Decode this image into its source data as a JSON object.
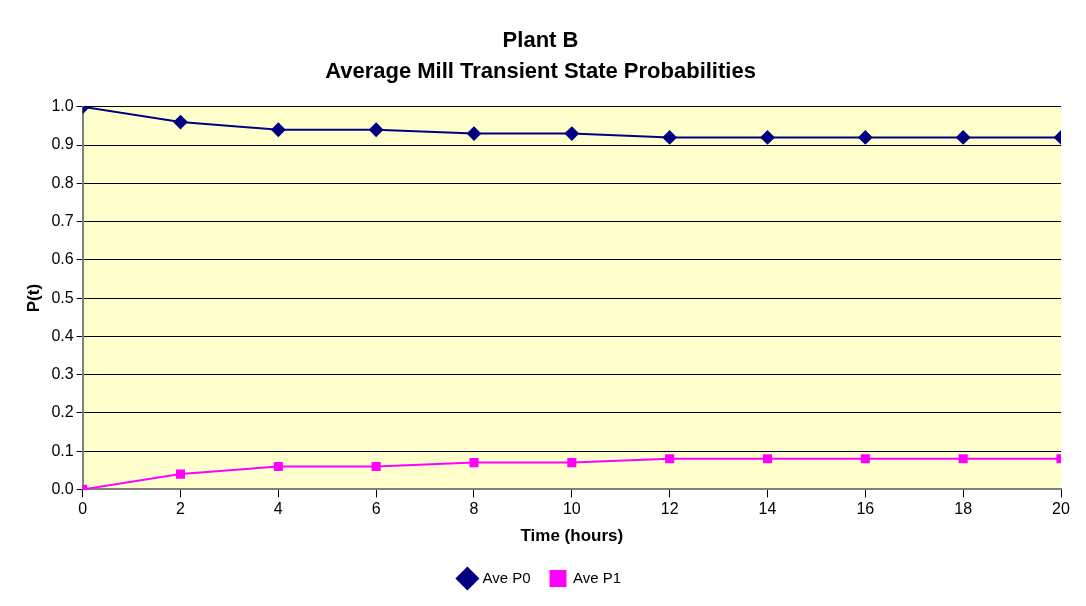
{
  "chart_data": {
    "type": "line",
    "title": "Plant B",
    "subtitle": "Average Mill Transient State Probabilities",
    "xlabel": "Time (hours)",
    "ylabel": "P(t)",
    "x": [
      0,
      2,
      4,
      6,
      8,
      10,
      12,
      14,
      16,
      18,
      20
    ],
    "series": [
      {
        "name": "Ave P0",
        "color": "#000080",
        "marker": "diamond",
        "values": [
          1.0,
          0.96,
          0.94,
          0.94,
          0.93,
          0.93,
          0.92,
          0.92,
          0.92,
          0.92,
          0.92
        ]
      },
      {
        "name": "Ave P1",
        "color": "#ff00ff",
        "marker": "square",
        "values": [
          0.0,
          0.04,
          0.06,
          0.06,
          0.07,
          0.07,
          0.08,
          0.08,
          0.08,
          0.08,
          0.08
        ]
      }
    ],
    "xlim": [
      0,
      20
    ],
    "xticks": [
      0,
      2,
      4,
      6,
      8,
      10,
      12,
      14,
      16,
      18,
      20
    ],
    "ylim": [
      0,
      1
    ],
    "yticks": [
      {
        "value": 0,
        "label": "0.0"
      },
      {
        "value": 0.1,
        "label": "0.1"
      },
      {
        "value": 0.2,
        "label": "0.2"
      },
      {
        "value": 0.3,
        "label": "0.3"
      },
      {
        "value": 0.4,
        "label": "0.4"
      },
      {
        "value": 0.5,
        "label": "0.5"
      },
      {
        "value": 0.6,
        "label": "0.6"
      },
      {
        "value": 0.7,
        "label": "0.7"
      },
      {
        "value": 0.8,
        "label": "0.8"
      },
      {
        "value": 0.9,
        "label": "0.9"
      },
      {
        "value": 1,
        "label": "1.0"
      }
    ],
    "grid": "y",
    "legend": "bottom",
    "line_style": "solid"
  }
}
